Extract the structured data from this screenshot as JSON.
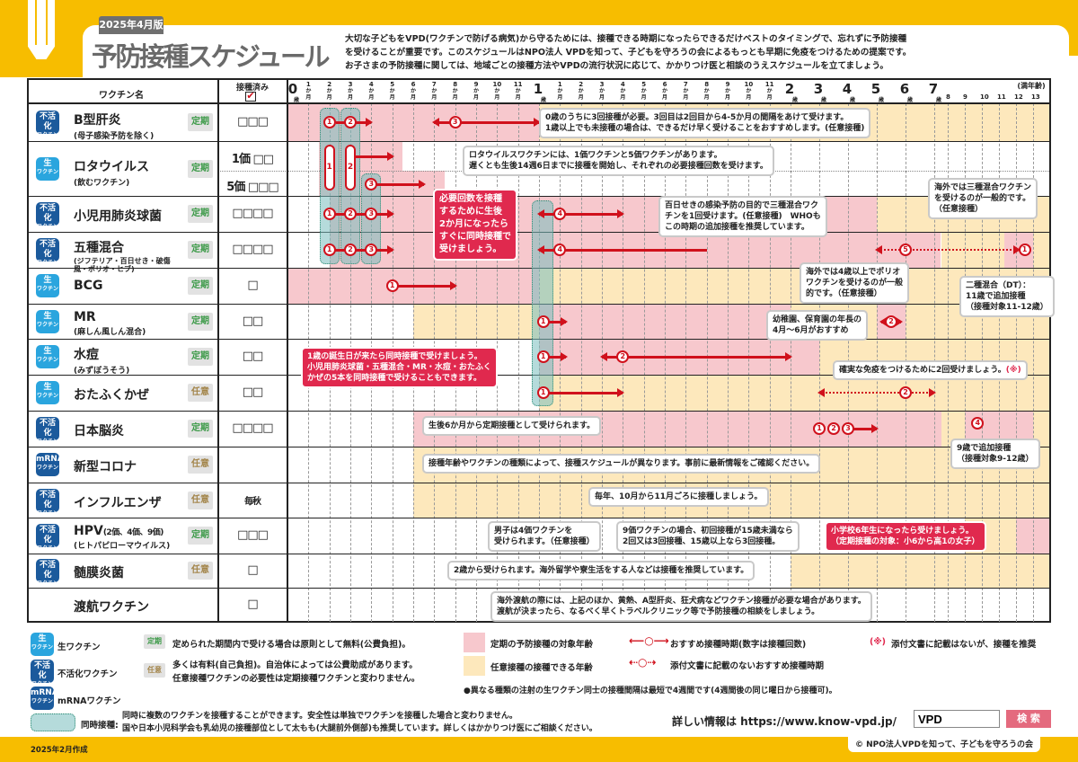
{
  "header": {
    "edition": "2025年4月版",
    "title": "予防接種スケジュール",
    "description": [
      "大切な子どもをVPD(ワクチンで防げる病気)から守るためには、接種できる時期になったらできるだけベストのタイミングで、忘れずに予防接種",
      "を受けることが重要です。このスケジュールはNPO法人 VPDを知って、子どもを守ろうの会によるもっとも早期に免疫をつけるための提案です。",
      "お子さまの予防接種に関しては、地域ごとの接種方法やVPDの流行状況に応じて、かかりつけ医と相談のうえスケジュールを立てましょう。"
    ]
  },
  "table": {
    "col_vaccine": "ワクチン名",
    "col_done": "接種済み",
    "done_icon": "checkbox-checked-icon",
    "age_unit": "(満年齢)",
    "year_suffix": "歳",
    "month_suffix": "か月",
    "major_years": [
      "0",
      "1",
      "2",
      "3",
      "4",
      "5",
      "6",
      "7"
    ],
    "months": [
      "1",
      "2",
      "3",
      "4",
      "5",
      "6",
      "7",
      "8",
      "9",
      "10",
      "11"
    ],
    "minor_years": [
      "8",
      "9",
      "10",
      "11",
      "12",
      "13"
    ]
  },
  "colors": {
    "regular_range": "#f7c8cd",
    "optional_range": "#fde8bc",
    "accent": "#d0111c",
    "simultaneous": "#7fbfbf",
    "brand": "#f7bd00"
  },
  "vaccines": [
    {
      "name": "B型肝炎",
      "sub": "(母子感染予防を除く)",
      "type": "inact",
      "category": "定期",
      "doses": "□□□"
    },
    {
      "name": "ロタウイルス",
      "sub": "(飲むワクチン)",
      "type": "live",
      "category": "定期",
      "doses_1": "1価 □□",
      "doses_5": "5価 □□□"
    },
    {
      "name": "小児用肺炎球菌",
      "sub": "",
      "type": "inact",
      "category": "定期",
      "doses": "□□□□"
    },
    {
      "name": "五種混合",
      "sub": "(ジフテリア・百日せき・破傷風・ポリオ・ヒブ)",
      "type": "inact",
      "category": "定期",
      "doses": "□□□□"
    },
    {
      "name": "BCG",
      "sub": "",
      "type": "live",
      "category": "定期",
      "doses": "□"
    },
    {
      "name": "MR",
      "sub": "(麻しん風しん混合)",
      "type": "live",
      "category": "定期",
      "doses": "□□"
    },
    {
      "name": "水痘",
      "sub": "(みずぼうそう)",
      "type": "live",
      "category": "定期",
      "doses": "□□"
    },
    {
      "name": "おたふくかぜ",
      "sub": "",
      "type": "live",
      "category": "任意",
      "doses": "□□"
    },
    {
      "name": "日本脳炎",
      "sub": "",
      "type": "inact",
      "category": "定期",
      "doses": "□□□□"
    },
    {
      "name": "新型コロナ",
      "sub": "",
      "type": "mrna",
      "category": "任意",
      "doses": ""
    },
    {
      "name": "インフルエンザ",
      "sub": "",
      "type": "inact",
      "category": "任意",
      "doses": "毎秋"
    },
    {
      "name": "HPV(2価、4価、9価)",
      "sub": "(ヒトパピローマウイルス)",
      "type": "inact",
      "category": "定期",
      "doses": "□□□"
    },
    {
      "name": "髄膜炎菌",
      "sub": "",
      "type": "inact",
      "category": "任意",
      "doses": "□"
    },
    {
      "name": "渡航ワクチン",
      "sub": "",
      "type": "",
      "category": "",
      "doses": "□"
    }
  ],
  "type_labels": {
    "inact": [
      "不活化",
      "ワクチン"
    ],
    "live": [
      "生",
      "ワクチン"
    ],
    "mrna": [
      "mRNA",
      "ワクチン"
    ]
  },
  "schedule_age_months": [
    {
      "ranges": [
        [
          "pink",
          0,
          12
        ],
        [
          "beige",
          12,
          168
        ]
      ],
      "doses": [
        [
          1,
          2
        ],
        [
          2,
          3
        ],
        [
          3,
          8
        ]
      ],
      "arrows": [
        [
          2.3,
          4,
          "r"
        ],
        [
          7,
          12,
          "b"
        ]
      ]
    },
    {
      "ranges": [
        [
          "pink",
          1.5,
          5.5,
          "top"
        ],
        [
          "pink",
          1.5,
          7.5,
          "bottom"
        ]
      ],
      "doses": [
        [
          3,
          4,
          "bottom"
        ]
      ],
      "pills": [
        [
          "1",
          2
        ],
        [
          "2",
          3
        ]
      ],
      "arrows": [
        [
          3,
          5,
          "r",
          "top"
        ],
        [
          4,
          6.5,
          "r",
          "bottom"
        ]
      ]
    },
    {
      "ranges": [
        [
          "pink",
          2,
          60
        ],
        [
          "beige",
          60,
          168
        ]
      ],
      "doses": [
        [
          1,
          2
        ],
        [
          2,
          3
        ],
        [
          3,
          4
        ],
        [
          4,
          13
        ]
      ],
      "arrows": [
        [
          2,
          5,
          "r"
        ],
        [
          12,
          16,
          "b"
        ]
      ]
    },
    {
      "ranges": [
        [
          "pink",
          2,
          90
        ],
        [
          "beige",
          90,
          136
        ],
        [
          "pink",
          136,
          156
        ],
        [
          "beige",
          156,
          168
        ]
      ],
      "doses": [
        [
          1,
          2
        ],
        [
          2,
          3
        ],
        [
          3,
          4
        ],
        [
          4,
          13
        ],
        [
          5,
          72
        ],
        [
          1,
          150
        ]
      ],
      "arrows": [
        [
          2,
          5,
          "r"
        ],
        [
          12,
          20,
          "l"
        ],
        [
          60,
          146,
          "bd"
        ]
      ]
    },
    {
      "ranges": [
        [
          "pink",
          0,
          12
        ],
        [
          "beige",
          12,
          168
        ]
      ],
      "doses": [
        [
          1,
          5
        ]
      ],
      "arrows": [
        [
          5,
          8,
          "r"
        ]
      ]
    },
    {
      "ranges": [
        [
          "beige",
          6,
          12
        ],
        [
          "pink",
          12,
          24
        ],
        [
          "beige",
          24,
          60
        ],
        [
          "pink",
          60,
          72
        ],
        [
          "beige",
          72,
          168
        ]
      ],
      "doses": [
        [
          1,
          12.2
        ],
        [
          2,
          66
        ]
      ],
      "arrows": [
        [
          12.2,
          13.3,
          "r"
        ],
        [
          62,
          70,
          "b"
        ]
      ]
    },
    {
      "ranges": [
        [
          "pink",
          12,
          36
        ],
        [
          "beige",
          36,
          168
        ]
      ],
      "doses": [
        [
          1,
          12.2
        ],
        [
          2,
          16
        ]
      ],
      "arrows": [
        [
          12.2,
          13.3,
          "r"
        ],
        [
          15,
          24,
          "b"
        ]
      ]
    },
    {
      "ranges": [
        [
          "beige",
          12,
          168
        ]
      ],
      "doses": [
        [
          1,
          12.2
        ],
        [
          2,
          72
        ]
      ],
      "arrows": [
        [
          12.2,
          16,
          "r"
        ],
        [
          36,
          84,
          "bd"
        ]
      ]
    },
    {
      "ranges": [
        [
          "pink",
          6,
          90
        ],
        [
          "beige",
          90,
          108
        ],
        [
          "pink",
          108,
          156
        ],
        [
          "beige",
          156,
          168
        ]
      ],
      "doses": [
        [
          1,
          36
        ],
        [
          2,
          37
        ],
        [
          3,
          48
        ]
      ],
      "arrows": [
        [
          48,
          60,
          "r"
        ]
      ],
      "extra": [
        [
          4,
          117
        ]
      ]
    },
    {
      "ranges": [
        [
          "beige",
          6,
          168
        ]
      ],
      "doses": [],
      "arrows": []
    },
    {
      "ranges": [
        [
          "beige",
          6,
          168
        ]
      ],
      "doses": [],
      "arrows": []
    },
    {
      "ranges": [
        [
          "beige",
          108,
          144
        ],
        [
          "pink",
          144,
          168
        ]
      ],
      "doses": [],
      "arrows": []
    },
    {
      "ranges": [
        [
          "beige",
          24,
          168
        ]
      ],
      "doses": [],
      "arrows": []
    },
    {
      "ranges": [],
      "doses": [],
      "arrows": []
    }
  ],
  "notes": {
    "hepb": [
      "0歳のうちに3回接種が必要。3回目は2回目から4-5か月の間隔をあけて受けます。",
      "1歳以上でも未接種の場合は、できるだけ早く受けることをおすすめします。(任意接種)"
    ],
    "rota": [
      "ロタウイルスワクチンには、1価ワクチンと5価ワクチンがあります。",
      "遅くとも生後14週6日までに接種を開始し、それぞれの必要接種回数を受けます。"
    ],
    "two_months": [
      "必要回数を接種",
      "するために生後",
      "2か月になったら",
      "すぐに同時接種で",
      "受けましょう。"
    ],
    "pertussis": [
      "百日せきの感染予防の目的で三種混合ワク",
      "チンを1回受けます。(任意接種)　WHOも",
      "この時期の追加接種を推奨しています。"
    ],
    "overseas_dtp": [
      "海外では三種混合ワクチン",
      "を受けるのが一般的です。",
      "（任意接種）"
    ],
    "polio": [
      "海外では4歳以上でポリオ",
      "ワクチンを受けるのが一般",
      "的です。（任意接種）"
    ],
    "dt": [
      "二種混合（DT）：",
      "11歳で追加接種",
      "（接種対象11-12歳）"
    ],
    "mr": [
      "幼稚園、保育園の年長の",
      "4月～6月がおすすめ"
    ],
    "first_birthday": [
      "1歳の誕生日が来たら同時接種で受けましょう。",
      "小児用肺炎球菌・五種混合・MR・水痘・おたふく",
      "かぜの5本を同時接種で受けることもできます。"
    ],
    "mumps": "確実な免疫をつけるために2回受けましょう。",
    "mumps_mark": "(※)",
    "je": "生後6か月から定期接種として受けられます。",
    "je_booster": [
      "9歳で追加接種",
      "（接種対象9-12歳）"
    ],
    "covid": "接種年齢やワクチンの種類によって、接種スケジュールが異なります。事前に最新情報をご確認ください。",
    "flu": "毎年、10月から11月ごろに接種しましょう。",
    "hpv_male": [
      "男子は4価ワクチンを",
      "受けられます。（任意接種）"
    ],
    "hpv_9": [
      "9価ワクチンの場合、初回接種が15歳未満なら",
      "2回又は3回接種、15歳以上なら3回接種。"
    ],
    "hpv_girls": [
      "小学校6年生になったら受けましょう。",
      "（定期接種の対象：小6から高1の女子）"
    ],
    "mening": "2歳から受けられます。海外留学や寮生活をする人などは接種を推奨しています。",
    "travel": [
      "海外渡航の際には、上記のほか、黄熱、A型肝炎、狂犬病などワクチン接種が必要な場合があります。",
      "渡航が決まったら、なるべく早くトラベルクリニック等で予防接種の相談をしましょう。"
    ]
  },
  "legend": {
    "live": "生ワクチン",
    "inactivated": "不活化ワクチン",
    "mrna": "mRNAワクチン",
    "regular_badge": "定期",
    "regular_text": "定められた期間内で受ける場合は原則として無料(公費負担)。",
    "optional_badge": "任意",
    "optional_text": [
      "多くは有料(自己負担)。自治体によっては公費助成があります。",
      "任意接種ワクチンの必要性は定期接種ワクチンと変わりません。"
    ],
    "regular_range": "定期の予防接種の対象年齢",
    "optional_range": "任意接種の接種できる年齢",
    "recommended": "おすすめ接種時期(数字は接種回数)",
    "recommended_unlisted": "添付文書に記載のないおすすめ接種時期",
    "asterisk_mark": "(※)",
    "asterisk_text": "添付文書に記載はないが、接種を推奨",
    "live_interval": "●異なる種類の注射の生ワクチン同士の接種間隔は最短で4週間です(4週間後の同じ曜日から接種可)。",
    "simultaneous_label": "同時接種:",
    "simultaneous_text": [
      "同時に複数のワクチンを接種することができます。安全性は単独でワクチンを接種した場合と変わりません。",
      "国や日本小児科学会も乳幼児の接種部位として太もも(大腿前外側部)も推奨しています。詳しくはかかりつけ医にご相談ください。"
    ]
  },
  "search": {
    "label": "詳しい情報は https://www.know-vpd.jp/",
    "value": "VPD",
    "button": "検 索"
  },
  "footer": {
    "created": "2025年2月作成",
    "copyright": "© NPO法人VPDを知って、子どもを守ろうの会"
  }
}
